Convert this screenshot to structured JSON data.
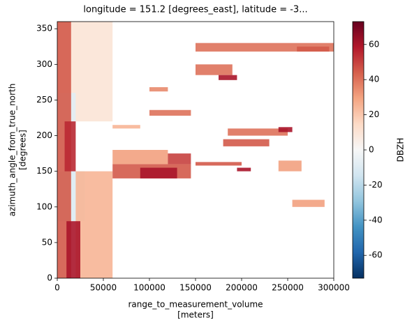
{
  "chart_data": {
    "type": "heatmap",
    "title": "longitude = 151.2 [degrees_east], latitude = -3...",
    "x_label": [
      "range_to_measurement_volume",
      "[meters]"
    ],
    "y_label": [
      "azimuth_angle_from_true_north",
      "[degrees]"
    ],
    "colorbar_label": "DBZH",
    "colormap": [
      "#053061",
      "#2166ac",
      "#4393c3",
      "#92c5de",
      "#d1e5f0",
      "#f7f7f7",
      "#fddbc7",
      "#f4a582",
      "#d6604d",
      "#b2182b",
      "#67001f"
    ],
    "xlim": [
      0,
      300000
    ],
    "xticks": [
      0,
      50000,
      100000,
      150000,
      200000,
      250000,
      300000
    ],
    "ylim": [
      0,
      360
    ],
    "yticks": [
      0,
      50,
      100,
      150,
      200,
      250,
      300,
      350
    ],
    "clim": [
      -73,
      73
    ],
    "cticks": [
      -60,
      -40,
      -20,
      0,
      20,
      40,
      60
    ],
    "patches": [
      {
        "x0": 0,
        "x1": 60000,
        "y0": 220,
        "y1": 360,
        "value": 10
      },
      {
        "x0": 0,
        "x1": 20000,
        "y0": 180,
        "y1": 260,
        "value": -8
      },
      {
        "x0": 0,
        "x1": 30000,
        "y0": 80,
        "y1": 150,
        "value": -10
      },
      {
        "x0": 20000,
        "x1": 60000,
        "y0": 0,
        "y1": 150,
        "value": 25
      },
      {
        "x0": 0,
        "x1": 15000,
        "y0": 0,
        "y1": 360,
        "value": 45
      },
      {
        "x0": 10000,
        "x1": 25000,
        "y0": 0,
        "y1": 80,
        "value": 60
      },
      {
        "x0": 8000,
        "x1": 20000,
        "y0": 150,
        "y1": 220,
        "value": 55
      },
      {
        "x0": 60000,
        "x1": 145000,
        "y0": 140,
        "y1": 160,
        "value": 45
      },
      {
        "x0": 90000,
        "x1": 130000,
        "y0": 140,
        "y1": 155,
        "value": 60
      },
      {
        "x0": 60000,
        "x1": 120000,
        "y0": 160,
        "y1": 180,
        "value": 30
      },
      {
        "x0": 120000,
        "x1": 145000,
        "y0": 160,
        "y1": 175,
        "value": 50
      },
      {
        "x0": 60000,
        "x1": 90000,
        "y0": 210,
        "y1": 215,
        "value": 25
      },
      {
        "x0": 100000,
        "x1": 145000,
        "y0": 228,
        "y1": 236,
        "value": 40
      },
      {
        "x0": 100000,
        "x1": 120000,
        "y0": 262,
        "y1": 268,
        "value": 35
      },
      {
        "x0": 150000,
        "x1": 300000,
        "y0": 318,
        "y1": 330,
        "value": 40
      },
      {
        "x0": 260000,
        "x1": 295000,
        "y0": 318,
        "y1": 325,
        "value": 45
      },
      {
        "x0": 150000,
        "x1": 190000,
        "y0": 285,
        "y1": 300,
        "value": 40
      },
      {
        "x0": 175000,
        "x1": 195000,
        "y0": 278,
        "y1": 285,
        "value": 60
      },
      {
        "x0": 185000,
        "x1": 250000,
        "y0": 200,
        "y1": 210,
        "value": 40
      },
      {
        "x0": 240000,
        "x1": 255000,
        "y0": 205,
        "y1": 212,
        "value": 60
      },
      {
        "x0": 180000,
        "x1": 230000,
        "y0": 185,
        "y1": 195,
        "value": 45
      },
      {
        "x0": 240000,
        "x1": 265000,
        "y0": 150,
        "y1": 165,
        "value": 30
      },
      {
        "x0": 150000,
        "x1": 200000,
        "y0": 158,
        "y1": 163,
        "value": 45
      },
      {
        "x0": 195000,
        "x1": 210000,
        "y0": 150,
        "y1": 155,
        "value": 60
      },
      {
        "x0": 255000,
        "x1": 290000,
        "y0": 100,
        "y1": 110,
        "value": 30
      }
    ]
  }
}
